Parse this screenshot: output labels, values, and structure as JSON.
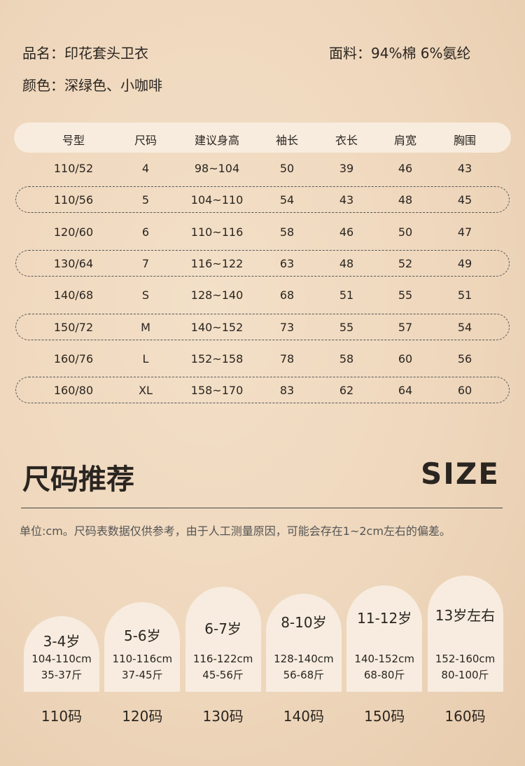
{
  "info": {
    "name": "品名：印花套头卫衣",
    "fabric": "面料：94%棉  6%氨纶",
    "color": "颜色：深绿色、小咖啡"
  },
  "table": {
    "columns": [
      "号型",
      "尺码",
      "建议身高",
      "袖长",
      "衣长",
      "肩宽",
      "胸围"
    ],
    "rows": [
      [
        "110/52",
        "4",
        "98~104",
        "50",
        "39",
        "46",
        "43"
      ],
      [
        "110/56",
        "5",
        "104~110",
        "54",
        "43",
        "48",
        "45"
      ],
      [
        "120/60",
        "6",
        "110~116",
        "58",
        "46",
        "50",
        "47"
      ],
      [
        "130/64",
        "7",
        "116~122",
        "63",
        "48",
        "52",
        "49"
      ],
      [
        "140/68",
        "S",
        "128~140",
        "68",
        "51",
        "55",
        "51"
      ],
      [
        "150/72",
        "M",
        "140~152",
        "73",
        "55",
        "57",
        "54"
      ],
      [
        "160/76",
        "L",
        "152~158",
        "78",
        "58",
        "60",
        "56"
      ],
      [
        "160/80",
        "XL",
        "158~170",
        "83",
        "62",
        "64",
        "60"
      ]
    ]
  },
  "section": {
    "title": "尺码推荐",
    "title_en": "SIZE",
    "note": "单位:cm。尺码表数据仅供参考，由于人工测量原因，可能会存在1~2cm左右的偏差。"
  },
  "cards": [
    {
      "age": "3-4岁",
      "height": "104-110cm",
      "weight": "35-37斤",
      "size": "110码"
    },
    {
      "age": "5-6岁",
      "height": "110-116cm",
      "weight": "37-45斤",
      "size": "120码"
    },
    {
      "age": "6-7岁",
      "height": "116-122cm",
      "weight": "45-56斤",
      "size": "130码"
    },
    {
      "age": "8-10岁",
      "height": "128-140cm",
      "weight": "56-68斤",
      "size": "140码"
    },
    {
      "age": "11-12岁",
      "height": "140-152cm",
      "weight": "68-80斤",
      "size": "150码"
    },
    {
      "age": "13岁左右",
      "height": "152-160cm",
      "weight": "80-100斤",
      "size": "160码"
    }
  ]
}
